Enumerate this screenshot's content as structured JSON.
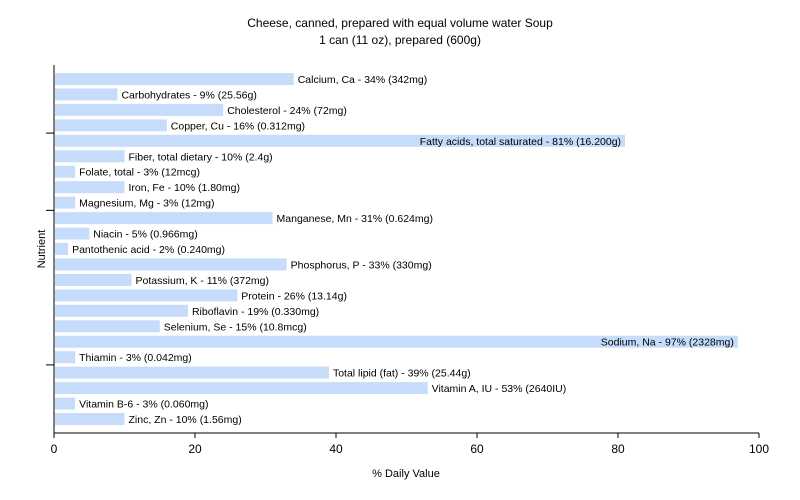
{
  "chart_data": {
    "type": "bar",
    "orientation": "horizontal",
    "title": "Cheese, canned, prepared with equal volume water Soup",
    "subtitle": "1 can (11 oz), prepared (600g)",
    "xlabel": "% Daily Value",
    "ylabel": "Nutrient",
    "xlim": [
      0,
      100
    ],
    "xticks": [
      0,
      20,
      40,
      60,
      80,
      100
    ],
    "bar_color": "#c6dcfa",
    "grid": false,
    "categories": [
      "Calcium, Ca",
      "Carbohydrates",
      "Cholesterol",
      "Copper, Cu",
      "Fatty acids, total saturated",
      "Fiber, total dietary",
      "Folate, total",
      "Iron, Fe",
      "Magnesium, Mg",
      "Manganese, Mn",
      "Niacin",
      "Pantothenic acid",
      "Phosphorus, P",
      "Potassium, K",
      "Protein",
      "Riboflavin",
      "Selenium, Se",
      "Sodium, Na",
      "Thiamin",
      "Total lipid (fat)",
      "Vitamin A, IU",
      "Vitamin B-6",
      "Zinc, Zn"
    ],
    "values": [
      34,
      9,
      24,
      16,
      81,
      10,
      3,
      10,
      3,
      31,
      5,
      2,
      33,
      11,
      26,
      19,
      15,
      97,
      3,
      39,
      53,
      3,
      10
    ],
    "labels": [
      "Calcium, Ca - 34% (342mg)",
      "Carbohydrates - 9% (25.56g)",
      "Cholesterol - 24% (72mg)",
      "Copper, Cu - 16% (0.312mg)",
      "Fatty acids, total saturated - 81% (16.200g)",
      "Fiber, total dietary - 10% (2.4g)",
      "Folate, total - 3% (12mcg)",
      "Iron, Fe - 10% (1.80mg)",
      "Magnesium, Mg - 3% (12mg)",
      "Manganese, Mn - 31% (0.624mg)",
      "Niacin - 5% (0.966mg)",
      "Pantothenic acid - 2% (0.240mg)",
      "Phosphorus, P - 33% (330mg)",
      "Potassium, K - 11% (372mg)",
      "Protein - 26% (13.14g)",
      "Riboflavin - 19% (0.330mg)",
      "Selenium, Se - 15% (10.8mcg)",
      "Sodium, Na - 97% (2328mg)",
      "Thiamin - 3% (0.042mg)",
      "Total lipid (fat) - 39% (25.44g)",
      "Vitamin A, IU - 53% (2640IU)",
      "Vitamin B-6 - 3% (0.060mg)",
      "Zinc, Zn - 10% (1.56mg)"
    ]
  }
}
